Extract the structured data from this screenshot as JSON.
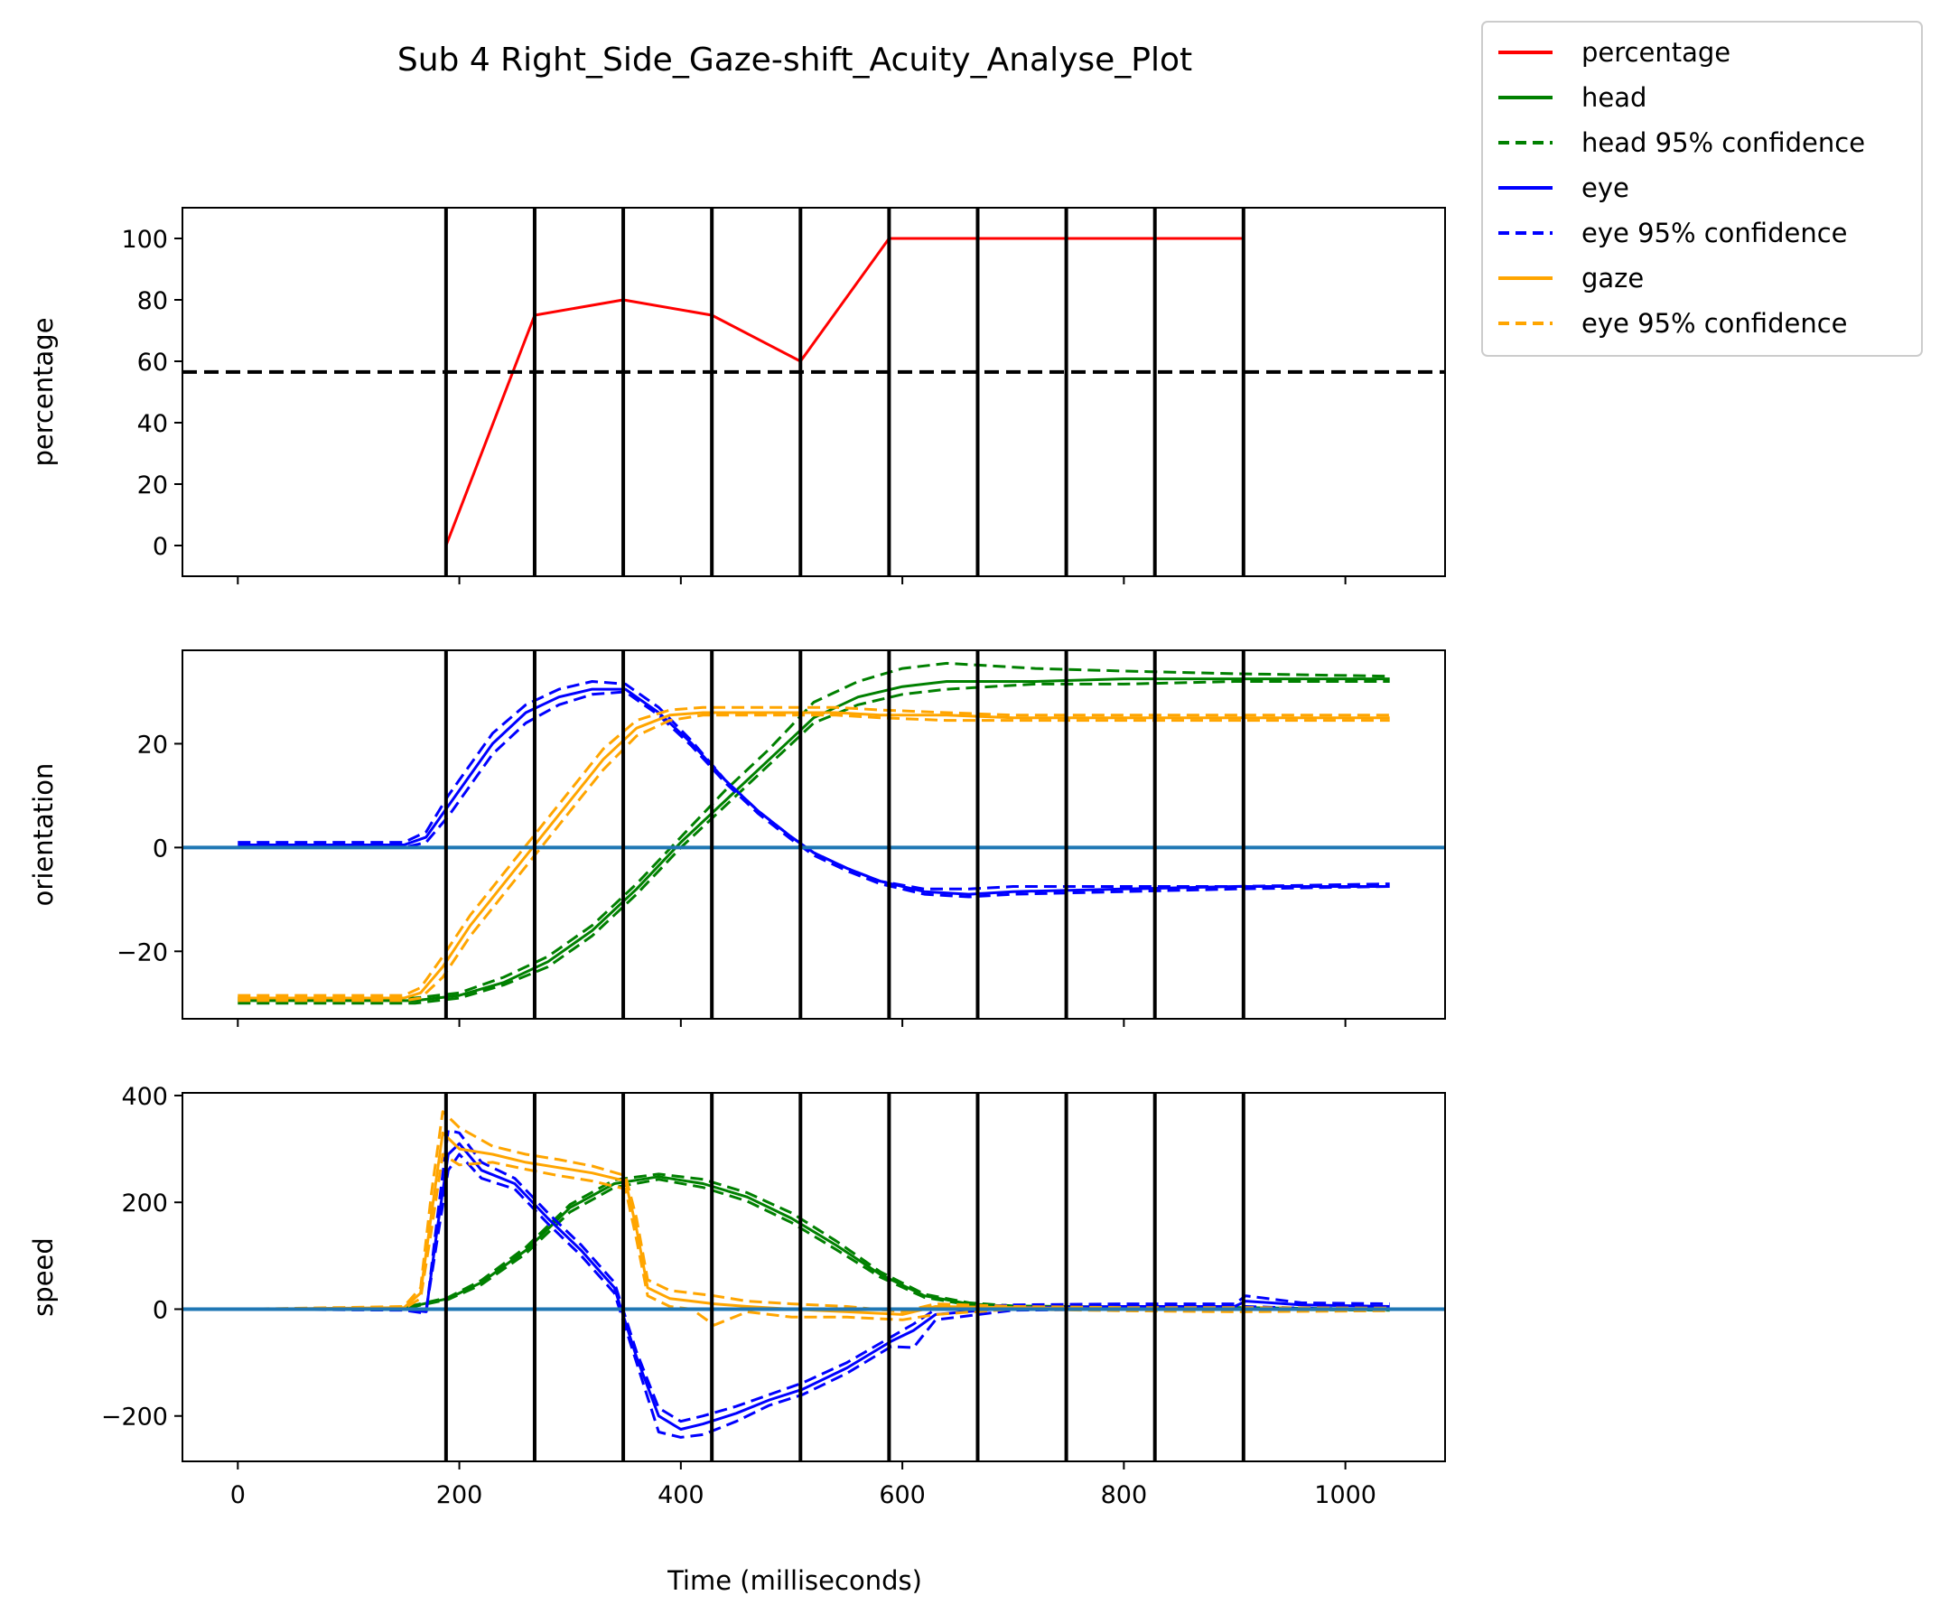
{
  "figure": {
    "title": "Sub 4 Right_Side_Gaze-shift_Acuity_Analyse_Plot",
    "xlabel": "Time (milliseconds)",
    "xlim": [
      -50,
      1090
    ],
    "xticks": [
      0,
      200,
      400,
      600,
      800,
      1000
    ],
    "event_lines_x": [
      188,
      268,
      348,
      428,
      508,
      588,
      668,
      748,
      828,
      908
    ],
    "legend": {
      "placement": "outside-top-right",
      "entries": [
        {
          "label": "percentage",
          "color": "#ff0000",
          "style": "solid"
        },
        {
          "label": "head",
          "color": "#008000",
          "style": "solid"
        },
        {
          "label": "head 95% confidence",
          "color": "#008000",
          "style": "dashed"
        },
        {
          "label": "eye",
          "color": "#0000ff",
          "style": "solid"
        },
        {
          "label": "eye 95% confidence",
          "color": "#0000ff",
          "style": "dashed"
        },
        {
          "label": "gaze",
          "color": "#ffa500",
          "style": "solid"
        },
        {
          "label": "eye 95% confidence",
          "color": "#ffa500",
          "style": "dashed"
        }
      ]
    }
  },
  "chart_data": [
    {
      "type": "line",
      "ylabel": "percentage",
      "ylim": [
        -10,
        110
      ],
      "yticks": [
        0,
        20,
        40,
        60,
        80,
        100
      ],
      "threshold": {
        "y": 56.5,
        "color": "#000000",
        "style": "dashed"
      },
      "series": [
        {
          "name": "percentage",
          "color": "#ff0000",
          "style": "solid",
          "x": [
            188,
            268,
            348,
            428,
            508,
            588,
            668,
            748,
            828,
            908
          ],
          "y": [
            0,
            75,
            80,
            75,
            60,
            100,
            100,
            100,
            100,
            100
          ]
        }
      ]
    },
    {
      "type": "line",
      "ylabel": "orientation",
      "ylim": [
        -33,
        38
      ],
      "yticks": [
        -20,
        0,
        20
      ],
      "zero_line": {
        "y": 0,
        "color": "#1f77b4"
      },
      "series": [
        {
          "name": "head",
          "color": "#008000",
          "style": "solid",
          "x": [
            0,
            100,
            160,
            200,
            240,
            280,
            320,
            360,
            400,
            440,
            480,
            520,
            560,
            600,
            640,
            680,
            720,
            800,
            900,
            1040
          ],
          "y": [
            -29.5,
            -29.5,
            -29.5,
            -28.5,
            -26,
            -22,
            -16,
            -8,
            1,
            9,
            17,
            25,
            29,
            31,
            32,
            32,
            32,
            32.5,
            32.5,
            32.5
          ]
        },
        {
          "name": "head 95% confidence",
          "color": "#008000",
          "style": "dashed",
          "x": [
            0,
            100,
            160,
            200,
            240,
            280,
            320,
            360,
            400,
            440,
            480,
            520,
            560,
            600,
            640,
            680,
            720,
            800,
            900,
            1040
          ],
          "y": [
            -29,
            -29,
            -29,
            -28,
            -25,
            -21,
            -15,
            -7,
            2,
            11,
            19,
            28,
            32,
            34.5,
            35.5,
            35,
            34.5,
            34,
            33.5,
            33
          ]
        },
        {
          "name": "head 95% confidence",
          "color": "#008000",
          "style": "dashed",
          "x": [
            0,
            100,
            160,
            200,
            240,
            280,
            320,
            360,
            400,
            440,
            480,
            520,
            560,
            600,
            640,
            680,
            720,
            800,
            900,
            1040
          ],
          "y": [
            -30,
            -30,
            -30,
            -29,
            -26.5,
            -23,
            -17,
            -9,
            0,
            8,
            16,
            24,
            27.5,
            29.5,
            30.5,
            31,
            31.5,
            31.5,
            32,
            32
          ]
        },
        {
          "name": "eye",
          "color": "#0000ff",
          "style": "solid",
          "x": [
            0,
            100,
            150,
            170,
            190,
            210,
            230,
            260,
            290,
            320,
            350,
            380,
            410,
            440,
            470,
            500,
            520,
            550,
            580,
            620,
            660,
            700,
            800,
            900,
            1040
          ],
          "y": [
            0.5,
            0.5,
            0.5,
            2,
            8,
            14,
            20,
            26,
            29,
            30.5,
            30.5,
            26,
            20,
            13,
            7,
            2,
            -1,
            -4,
            -6.5,
            -8.5,
            -9,
            -8.5,
            -8,
            -7.5,
            -7.5
          ]
        },
        {
          "name": "eye 95% confidence",
          "color": "#0000ff",
          "style": "dashed",
          "x": [
            0,
            100,
            150,
            170,
            190,
            210,
            230,
            260,
            290,
            320,
            350,
            380,
            410,
            440,
            470,
            500,
            520,
            550,
            580,
            620,
            660,
            700,
            800,
            900,
            1040
          ],
          "y": [
            1,
            1,
            1,
            3,
            10,
            16,
            22,
            27.5,
            30.5,
            32,
            31.5,
            27,
            20.5,
            13,
            7,
            2,
            -1,
            -4,
            -6.5,
            -8,
            -8,
            -7.5,
            -7.5,
            -7.5,
            -7
          ]
        },
        {
          "name": "eye 95% confidence",
          "color": "#0000ff",
          "style": "dashed",
          "x": [
            0,
            100,
            150,
            170,
            190,
            210,
            230,
            260,
            290,
            320,
            350,
            380,
            410,
            440,
            470,
            500,
            520,
            550,
            580,
            620,
            660,
            700,
            800,
            900,
            1040
          ],
          "y": [
            0,
            0,
            0,
            1,
            6,
            12,
            18,
            24,
            27.5,
            29.5,
            30,
            25.5,
            19.5,
            12.5,
            6.5,
            1.5,
            -1.5,
            -4.5,
            -7,
            -9,
            -9.5,
            -9,
            -8.5,
            -8,
            -7.5
          ]
        },
        {
          "name": "gaze",
          "color": "#ffa500",
          "style": "solid",
          "x": [
            0,
            100,
            150,
            165,
            185,
            210,
            240,
            270,
            300,
            330,
            360,
            390,
            420,
            460,
            500,
            540,
            580,
            640,
            700,
            800,
            900,
            1040
          ],
          "y": [
            -29,
            -29,
            -29,
            -28,
            -23,
            -15,
            -7,
            1,
            9,
            17,
            23,
            25.5,
            26,
            26,
            26,
            26,
            25.5,
            25.5,
            25,
            25,
            25,
            25
          ]
        },
        {
          "name": "eye 95% confidence",
          "color": "#ffa500",
          "style": "dashed",
          "x": [
            0,
            100,
            150,
            165,
            185,
            210,
            240,
            270,
            300,
            330,
            360,
            390,
            420,
            460,
            500,
            540,
            580,
            640,
            700,
            800,
            900,
            1040
          ],
          "y": [
            -28.5,
            -28.5,
            -28.5,
            -27,
            -21,
            -13,
            -5,
            3,
            11,
            19,
            24.5,
            26.5,
            27,
            27,
            27,
            27,
            26.5,
            26,
            25.5,
            25.5,
            25.5,
            25.5
          ]
        },
        {
          "name": "eye 95% confidence",
          "color": "#ffa500",
          "style": "dashed",
          "x": [
            0,
            100,
            150,
            165,
            185,
            210,
            240,
            270,
            300,
            330,
            360,
            390,
            420,
            460,
            500,
            540,
            580,
            640,
            700,
            800,
            900,
            1040
          ],
          "y": [
            -29.5,
            -29.5,
            -29.5,
            -29,
            -25,
            -17,
            -9,
            -1,
            7,
            15,
            21.5,
            24.5,
            25.5,
            25.5,
            25.5,
            25.5,
            25,
            24.5,
            24.5,
            24.5,
            24.5,
            24.5
          ]
        }
      ]
    },
    {
      "type": "line",
      "ylabel": "speed",
      "ylim": [
        -285,
        405
      ],
      "yticks": [
        -200,
        0,
        200,
        400
      ],
      "zero_line": {
        "y": 0,
        "color": "#1f77b4"
      },
      "series": [
        {
          "name": "head",
          "color": "#008000",
          "style": "solid",
          "x": [
            0,
            150,
            190,
            220,
            260,
            300,
            340,
            380,
            420,
            460,
            500,
            540,
            580,
            620,
            660,
            700,
            800,
            900,
            1040
          ],
          "y": [
            0,
            2,
            20,
            50,
            110,
            190,
            235,
            248,
            235,
            210,
            170,
            120,
            65,
            25,
            10,
            5,
            3,
            2,
            0
          ]
        },
        {
          "name": "head 95% confidence",
          "color": "#008000",
          "style": "dashed",
          "x": [
            0,
            150,
            190,
            220,
            260,
            300,
            340,
            380,
            420,
            460,
            500,
            540,
            580,
            620,
            660,
            700,
            800,
            900,
            1040
          ],
          "y": [
            0,
            3,
            22,
            54,
            116,
            196,
            242,
            253,
            243,
            218,
            180,
            128,
            70,
            28,
            12,
            6,
            4,
            3,
            0
          ]
        },
        {
          "name": "head 95% confidence",
          "color": "#008000",
          "style": "dashed",
          "x": [
            0,
            150,
            190,
            220,
            260,
            300,
            340,
            380,
            420,
            460,
            500,
            540,
            580,
            620,
            660,
            700,
            800,
            900,
            1040
          ],
          "y": [
            0,
            1,
            18,
            46,
            104,
            182,
            228,
            243,
            228,
            202,
            162,
            112,
            60,
            22,
            8,
            3,
            1,
            0,
            -2
          ]
        },
        {
          "name": "eye",
          "color": "#0000ff",
          "style": "solid",
          "x": [
            0,
            150,
            170,
            180,
            190,
            200,
            220,
            250,
            280,
            310,
            340,
            360,
            380,
            400,
            420,
            450,
            480,
            510,
            550,
            590,
            610,
            630,
            700,
            800,
            900,
            910,
            960,
            1040
          ],
          "y": [
            0,
            0,
            -5,
            150,
            290,
            310,
            260,
            235,
            170,
            110,
            40,
            -90,
            -200,
            -225,
            -215,
            -195,
            -170,
            -150,
            -110,
            -60,
            -40,
            -10,
            3,
            5,
            5,
            15,
            8,
            5
          ]
        },
        {
          "name": "eye 95% confidence",
          "color": "#0000ff",
          "style": "dashed",
          "x": [
            0,
            150,
            170,
            180,
            190,
            200,
            220,
            250,
            280,
            310,
            340,
            360,
            380,
            400,
            420,
            450,
            480,
            510,
            550,
            590,
            610,
            630,
            700,
            800,
            900,
            910,
            960,
            1040
          ],
          "y": [
            0,
            -2,
            -8,
            170,
            335,
            330,
            275,
            245,
            180,
            120,
            50,
            -80,
            -185,
            -210,
            -200,
            -182,
            -160,
            -138,
            -100,
            -52,
            -28,
            0,
            8,
            10,
            10,
            25,
            12,
            10
          ]
        },
        {
          "name": "eye 95% confidence",
          "color": "#0000ff",
          "style": "dashed",
          "x": [
            0,
            150,
            170,
            180,
            190,
            200,
            220,
            250,
            280,
            310,
            340,
            360,
            380,
            400,
            420,
            450,
            480,
            510,
            550,
            590,
            610,
            630,
            700,
            800,
            900,
            910,
            960,
            1040
          ],
          "y": [
            0,
            2,
            -2,
            130,
            260,
            290,
            245,
            225,
            160,
            100,
            30,
            -100,
            -230,
            -240,
            -235,
            -210,
            -180,
            -160,
            -120,
            -70,
            -72,
            -20,
            -2,
            0,
            0,
            5,
            2,
            0
          ]
        },
        {
          "name": "gaze",
          "color": "#ffa500",
          "style": "solid",
          "x": [
            0,
            150,
            165,
            175,
            185,
            200,
            230,
            260,
            290,
            320,
            350,
            360,
            370,
            390,
            410,
            430,
            460,
            500,
            550,
            600,
            630,
            700,
            800,
            900,
            1040
          ],
          "y": [
            0,
            3,
            30,
            180,
            330,
            300,
            290,
            275,
            265,
            255,
            240,
            150,
            40,
            20,
            15,
            10,
            5,
            0,
            -5,
            -10,
            5,
            3,
            0,
            0,
            0
          ]
        },
        {
          "name": "eye 95% confidence",
          "color": "#ffa500",
          "style": "dashed",
          "x": [
            0,
            150,
            165,
            175,
            185,
            200,
            230,
            260,
            290,
            320,
            350,
            360,
            370,
            390,
            410,
            430,
            460,
            500,
            550,
            600,
            630,
            700,
            800,
            900,
            1040
          ],
          "y": [
            0,
            5,
            40,
            220,
            370,
            340,
            305,
            290,
            280,
            268,
            250,
            170,
            55,
            35,
            30,
            25,
            15,
            10,
            5,
            -5,
            10,
            5,
            3,
            3,
            2
          ]
        },
        {
          "name": "eye 95% confidence",
          "color": "#ffa500",
          "style": "dashed",
          "x": [
            0,
            150,
            165,
            175,
            185,
            200,
            230,
            260,
            290,
            320,
            350,
            360,
            370,
            390,
            410,
            430,
            460,
            500,
            550,
            600,
            630,
            700,
            800,
            900,
            1040
          ],
          "y": [
            0,
            1,
            20,
            150,
            290,
            270,
            275,
            262,
            250,
            240,
            225,
            130,
            25,
            5,
            0,
            -30,
            -5,
            -15,
            -15,
            -20,
            -10,
            0,
            -3,
            -5,
            -3
          ]
        }
      ]
    }
  ]
}
